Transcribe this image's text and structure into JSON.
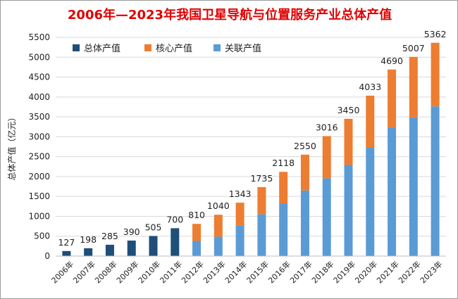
{
  "chart_data": {
    "type": "bar",
    "stacked": true,
    "title": "2006年—2023年我国卫星导航与位置服务产业总体产值",
    "ylabel": "总体产值（亿元）",
    "xlabel": "",
    "ylim": [
      0,
      5500
    ],
    "yticks": [
      0,
      500,
      1000,
      1500,
      2000,
      2500,
      3000,
      3500,
      4000,
      4500,
      5000,
      5500
    ],
    "grid": true,
    "legend_position": "top-left",
    "categories": [
      "2006年",
      "2007年",
      "2008年",
      "2009年",
      "2010年",
      "2011年",
      "2012年",
      "2013年",
      "2014年",
      "2015年",
      "2016年",
      "2017年",
      "2018年",
      "2019年",
      "2020年",
      "2021年",
      "2022年",
      "2023年"
    ],
    "totals": [
      127,
      198,
      285,
      390,
      505,
      700,
      810,
      1040,
      1343,
      1735,
      2118,
      2550,
      3016,
      3450,
      4033,
      4690,
      5007,
      5362
    ],
    "series": [
      {
        "name": "总体产值",
        "color": "#1f4e79",
        "values": [
          127,
          198,
          285,
          390,
          505,
          700,
          null,
          null,
          null,
          null,
          null,
          null,
          null,
          null,
          null,
          null,
          null,
          null
        ]
      },
      {
        "name": "核心产值",
        "color": "#ed7d31",
        "values": [
          null,
          null,
          null,
          null,
          null,
          null,
          430,
          550,
          570,
          680,
          800,
          900,
          1060,
          1160,
          1300,
          1450,
          1520,
          1600
        ]
      },
      {
        "name": "关联产值",
        "color": "#5b9bd5",
        "values": [
          null,
          null,
          null,
          null,
          null,
          null,
          380,
          490,
          773,
          1055,
          1318,
          1650,
          1956,
          2290,
          2733,
          3240,
          3487,
          3762
        ]
      }
    ],
    "title_color": "#e00000"
  }
}
